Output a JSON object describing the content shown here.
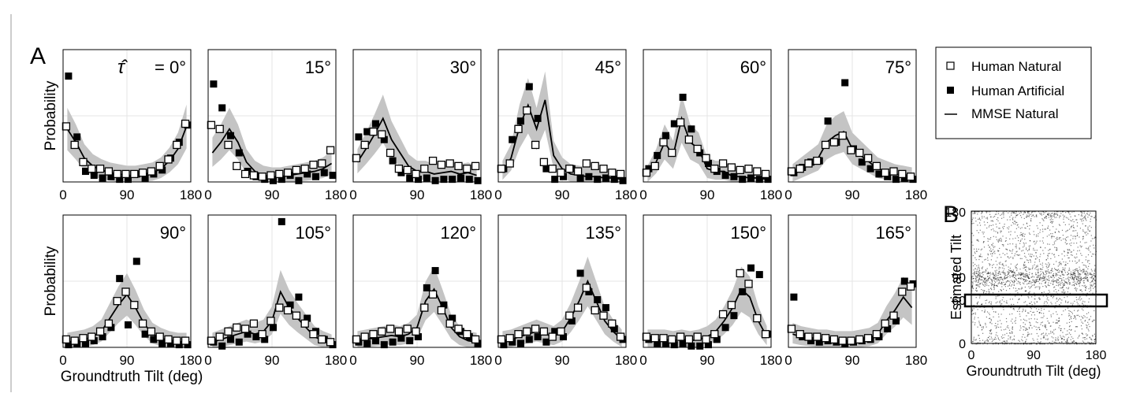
{
  "panel_labels": {
    "a": "A",
    "b": "B"
  },
  "shared": {
    "xlabel": "Groundtruth Tilt (deg)",
    "ylabel": "Probability",
    "xticks": [
      "0",
      "90",
      "180"
    ]
  },
  "legend": {
    "items": [
      {
        "label": "Human Natural",
        "marker": "open-square"
      },
      {
        "label": "Human Artificial",
        "marker": "filled-square"
      },
      {
        "label": "MMSE Natural",
        "marker": "line"
      }
    ]
  },
  "colors": {
    "band": "#c4c4c4",
    "grid": "#e4e4e4",
    "ink": "#000000"
  },
  "chart_data": [
    {
      "type": "line",
      "title": "= 0°",
      "title_symbol": "τ̂",
      "xlim": [
        0,
        180
      ],
      "x": [
        6,
        18,
        30,
        42,
        54,
        66,
        78,
        90,
        102,
        114,
        126,
        138,
        150,
        162,
        174
      ],
      "series": [
        {
          "name": "Human Natural",
          "values": [
            0.42,
            0.28,
            0.15,
            0.1,
            0.1,
            0.08,
            0.06,
            0.06,
            0.06,
            0.07,
            0.08,
            0.12,
            0.17,
            0.28,
            0.44
          ]
        },
        {
          "name": "Human Artificial",
          "values": [
            0.8,
            0.34,
            0.08,
            0.05,
            0.03,
            0.04,
            0.02,
            0.02,
            0.06,
            0.03,
            0.06,
            0.09,
            0.18,
            0.3,
            0.43
          ]
        },
        {
          "name": "MMSE Natural",
          "values": [
            0.4,
            0.3,
            0.18,
            0.12,
            0.09,
            0.07,
            0.06,
            0.05,
            0.05,
            0.06,
            0.07,
            0.1,
            0.16,
            0.25,
            0.42
          ]
        }
      ]
    },
    {
      "type": "line",
      "title": "15°",
      "xlim": [
        0,
        180
      ],
      "x": [
        6,
        18,
        30,
        42,
        54,
        66,
        78,
        90,
        102,
        114,
        126,
        138,
        150,
        162,
        174
      ],
      "series": [
        {
          "name": "Human Natural",
          "values": [
            0.43,
            0.4,
            0.28,
            0.12,
            0.06,
            0.05,
            0.04,
            0.05,
            0.06,
            0.07,
            0.09,
            0.1,
            0.13,
            0.14,
            0.24
          ]
        },
        {
          "name": "Human Artificial",
          "values": [
            0.74,
            0.56,
            0.35,
            0.22,
            0.08,
            0.04,
            0.02,
            0.01,
            0.02,
            0.05,
            0.01,
            0.06,
            0.04,
            0.07,
            0.05
          ]
        },
        {
          "name": "MMSE Natural",
          "values": [
            0.22,
            0.3,
            0.4,
            0.3,
            0.15,
            0.08,
            0.05,
            0.04,
            0.04,
            0.05,
            0.06,
            0.07,
            0.08,
            0.1,
            0.14
          ]
        }
      ]
    },
    {
      "type": "line",
      "title": "30°",
      "xlim": [
        0,
        180
      ],
      "x": [
        6,
        18,
        30,
        42,
        54,
        66,
        78,
        90,
        102,
        114,
        126,
        138,
        150,
        162,
        174
      ],
      "series": [
        {
          "name": "Human Natural",
          "values": [
            0.18,
            0.28,
            0.38,
            0.36,
            0.22,
            0.1,
            0.09,
            0.06,
            0.1,
            0.16,
            0.13,
            0.14,
            0.12,
            0.1,
            0.12
          ]
        },
        {
          "name": "Human Artificial",
          "values": [
            0.34,
            0.38,
            0.44,
            0.32,
            0.16,
            0.07,
            0.03,
            0.02,
            0.03,
            0.01,
            0.02,
            0.02,
            0.03,
            0.02,
            0.01
          ]
        },
        {
          "name": "MMSE Natural",
          "values": [
            0.15,
            0.25,
            0.36,
            0.48,
            0.32,
            0.22,
            0.12,
            0.08,
            0.08,
            0.06,
            0.07,
            0.08,
            0.06,
            0.07,
            0.05
          ]
        }
      ]
    },
    {
      "type": "line",
      "title": "45°",
      "xlim": [
        0,
        180
      ],
      "x": [
        6,
        18,
        30,
        42,
        54,
        66,
        78,
        90,
        102,
        114,
        126,
        138,
        150,
        162,
        174
      ],
      "series": [
        {
          "name": "Human Natural",
          "values": [
            0.1,
            0.14,
            0.4,
            0.54,
            0.28,
            0.15,
            0.1,
            0.07,
            0.1,
            0.08,
            0.14,
            0.12,
            0.1,
            0.07,
            0.06
          ]
        },
        {
          "name": "Human Artificial",
          "values": [
            0.1,
            0.32,
            0.46,
            0.72,
            0.48,
            0.1,
            0.02,
            0.04,
            0.1,
            0.03,
            0.04,
            0.02,
            0.03,
            0.02,
            0.01
          ]
        },
        {
          "name": "MMSE Natural",
          "values": [
            0.08,
            0.18,
            0.42,
            0.58,
            0.4,
            0.62,
            0.2,
            0.1,
            0.06,
            0.05,
            0.04,
            0.04,
            0.03,
            0.03,
            0.02
          ]
        }
      ]
    },
    {
      "type": "line",
      "title": "60°",
      "xlim": [
        0,
        180
      ],
      "x": [
        6,
        18,
        30,
        42,
        54,
        66,
        78,
        90,
        102,
        114,
        126,
        138,
        150,
        162,
        174
      ],
      "series": [
        {
          "name": "Human Natural",
          "values": [
            0.07,
            0.12,
            0.3,
            0.22,
            0.45,
            0.32,
            0.25,
            0.18,
            0.1,
            0.14,
            0.11,
            0.09,
            0.1,
            0.08,
            0.06
          ]
        },
        {
          "name": "Human Artificial",
          "values": [
            0.1,
            0.2,
            0.35,
            0.44,
            0.64,
            0.4,
            0.22,
            0.14,
            0.08,
            0.05,
            0.04,
            0.02,
            0.03,
            0.02,
            0.02
          ]
        },
        {
          "name": "MMSE Natural",
          "values": [
            0.05,
            0.15,
            0.3,
            0.2,
            0.48,
            0.3,
            0.25,
            0.1,
            0.08,
            0.08,
            0.04,
            0.04,
            0.03,
            0.03,
            0.02
          ]
        }
      ]
    },
    {
      "type": "line",
      "title": "75°",
      "xlim": [
        0,
        180
      ],
      "x": [
        6,
        18,
        30,
        42,
        54,
        66,
        78,
        90,
        102,
        114,
        126,
        138,
        150,
        162,
        174
      ],
      "series": [
        {
          "name": "Human Natural",
          "values": [
            0.08,
            0.1,
            0.14,
            0.16,
            0.28,
            0.3,
            0.35,
            0.24,
            0.22,
            0.18,
            0.12,
            0.07,
            0.08,
            0.06,
            0.04
          ]
        },
        {
          "name": "Human Artificial",
          "values": [
            0.07,
            0.11,
            0.15,
            0.16,
            0.46,
            0.3,
            0.75,
            0.25,
            0.15,
            0.1,
            0.06,
            0.04,
            0.02,
            0.03,
            0.02
          ]
        },
        {
          "name": "MMSE Natural",
          "values": [
            0.06,
            0.1,
            0.14,
            0.18,
            0.3,
            0.35,
            0.38,
            0.25,
            0.2,
            0.15,
            0.1,
            0.08,
            0.06,
            0.05,
            0.04
          ]
        }
      ]
    },
    {
      "type": "line",
      "title": "90°",
      "xlim": [
        0,
        180
      ],
      "x": [
        6,
        18,
        30,
        42,
        54,
        66,
        78,
        90,
        102,
        114,
        126,
        138,
        150,
        162,
        174
      ],
      "series": [
        {
          "name": "Human Natural",
          "values": [
            0.06,
            0.05,
            0.07,
            0.08,
            0.12,
            0.18,
            0.35,
            0.42,
            0.32,
            0.18,
            0.12,
            0.08,
            0.06,
            0.05,
            0.05
          ]
        },
        {
          "name": "Human Artificial",
          "values": [
            0.02,
            0.03,
            0.03,
            0.05,
            0.08,
            0.15,
            0.52,
            0.17,
            0.65,
            0.1,
            0.06,
            0.03,
            0.03,
            0.02,
            0.02
          ]
        },
        {
          "name": "MMSE Natural",
          "values": [
            0.04,
            0.05,
            0.06,
            0.08,
            0.12,
            0.22,
            0.32,
            0.4,
            0.3,
            0.18,
            0.1,
            0.07,
            0.05,
            0.04,
            0.04
          ]
        }
      ]
    },
    {
      "type": "line",
      "title": "105°",
      "xlim": [
        0,
        180
      ],
      "x": [
        6,
        18,
        30,
        42,
        54,
        66,
        78,
        90,
        102,
        114,
        126,
        138,
        150,
        162,
        174
      ],
      "series": [
        {
          "name": "Human Natural",
          "values": [
            0.05,
            0.08,
            0.12,
            0.15,
            0.14,
            0.18,
            0.1,
            0.2,
            0.3,
            0.28,
            0.24,
            0.18,
            0.1,
            0.06,
            0.04
          ]
        },
        {
          "name": "Human Artificial",
          "values": [
            0.04,
            0.01,
            0.06,
            0.04,
            0.1,
            0.08,
            0.06,
            0.15,
            0.95,
            0.32,
            0.38,
            0.22,
            0.12,
            0.06,
            0.02
          ]
        },
        {
          "name": "MMSE Natural",
          "values": [
            0.04,
            0.06,
            0.08,
            0.1,
            0.12,
            0.1,
            0.12,
            0.2,
            0.42,
            0.3,
            0.22,
            0.15,
            0.08,
            0.05,
            0.03
          ]
        }
      ]
    },
    {
      "type": "line",
      "title": "120°",
      "xlim": [
        0,
        180
      ],
      "x": [
        6,
        18,
        30,
        42,
        54,
        66,
        78,
        90,
        102,
        114,
        126,
        138,
        150,
        162,
        174
      ],
      "series": [
        {
          "name": "Human Natural",
          "values": [
            0.06,
            0.08,
            0.1,
            0.12,
            0.14,
            0.12,
            0.14,
            0.12,
            0.3,
            0.4,
            0.28,
            0.18,
            0.14,
            0.1,
            0.06
          ]
        },
        {
          "name": "Human Artificial",
          "values": [
            0.04,
            0.03,
            0.05,
            0.02,
            0.04,
            0.07,
            0.05,
            0.08,
            0.45,
            0.58,
            0.32,
            0.22,
            0.12,
            0.08,
            0.03
          ]
        },
        {
          "name": "MMSE Natural",
          "values": [
            0.05,
            0.06,
            0.07,
            0.08,
            0.09,
            0.08,
            0.1,
            0.15,
            0.35,
            0.44,
            0.3,
            0.15,
            0.08,
            0.05,
            0.04
          ]
        }
      ]
    },
    {
      "type": "line",
      "title": "135°",
      "xlim": [
        0,
        180
      ],
      "x": [
        6,
        18,
        30,
        42,
        54,
        66,
        78,
        90,
        102,
        114,
        126,
        138,
        150,
        162,
        174
      ],
      "series": [
        {
          "name": "Human Natural",
          "values": [
            0.06,
            0.07,
            0.1,
            0.12,
            0.14,
            0.12,
            0.08,
            0.12,
            0.24,
            0.3,
            0.45,
            0.28,
            0.24,
            0.18,
            0.08
          ]
        },
        {
          "name": "Human Artificial",
          "values": [
            0.02,
            0.04,
            0.03,
            0.06,
            0.08,
            0.04,
            0.12,
            0.08,
            0.2,
            0.56,
            0.42,
            0.36,
            0.3,
            0.14,
            0.06
          ]
        },
        {
          "name": "MMSE Natural",
          "values": [
            0.05,
            0.06,
            0.08,
            0.1,
            0.12,
            0.1,
            0.08,
            0.12,
            0.22,
            0.35,
            0.5,
            0.35,
            0.2,
            0.12,
            0.06
          ]
        }
      ]
    },
    {
      "type": "line",
      "title": "150°",
      "xlim": [
        0,
        180
      ],
      "x": [
        6,
        18,
        30,
        42,
        54,
        66,
        78,
        90,
        102,
        114,
        126,
        138,
        150,
        162,
        174
      ],
      "series": [
        {
          "name": "Human Natural",
          "values": [
            0.08,
            0.07,
            0.07,
            0.06,
            0.08,
            0.06,
            0.08,
            0.06,
            0.1,
            0.25,
            0.32,
            0.56,
            0.48,
            0.22,
            0.1
          ]
        },
        {
          "name": "Human Artificial",
          "values": [
            0.06,
            0.03,
            0.03,
            0.02,
            0.03,
            0.01,
            0.01,
            0.02,
            0.06,
            0.15,
            0.24,
            0.42,
            0.6,
            0.55,
            0.1
          ]
        },
        {
          "name": "MMSE Natural",
          "values": [
            0.06,
            0.06,
            0.06,
            0.05,
            0.06,
            0.05,
            0.06,
            0.08,
            0.12,
            0.2,
            0.3,
            0.44,
            0.38,
            0.2,
            0.08
          ]
        }
      ]
    },
    {
      "type": "line",
      "title": "165°",
      "xlim": [
        0,
        180
      ],
      "x": [
        6,
        18,
        30,
        42,
        54,
        66,
        78,
        90,
        102,
        114,
        126,
        138,
        150,
        162,
        174
      ],
      "series": [
        {
          "name": "Human Natural",
          "values": [
            0.14,
            0.1,
            0.08,
            0.08,
            0.07,
            0.06,
            0.05,
            0.05,
            0.06,
            0.07,
            0.1,
            0.18,
            0.24,
            0.42,
            0.46
          ]
        },
        {
          "name": "Human Artificial",
          "values": [
            0.38,
            0.08,
            0.05,
            0.04,
            0.05,
            0.04,
            0.03,
            0.04,
            0.05,
            0.06,
            0.08,
            0.14,
            0.2,
            0.5,
            0.48
          ]
        },
        {
          "name": "MMSE Natural",
          "values": [
            0.1,
            0.08,
            0.07,
            0.06,
            0.06,
            0.05,
            0.05,
            0.05,
            0.06,
            0.07,
            0.1,
            0.2,
            0.28,
            0.38,
            0.3
          ]
        }
      ]
    },
    {
      "type": "scatter",
      "panel": "B",
      "xlabel": "Groundtruth Tilt (deg)",
      "ylabel": "Estimated Tilt",
      "xlim": [
        0,
        180
      ],
      "ylim": [
        0,
        180
      ],
      "xticks": [
        "0",
        "90",
        "180"
      ],
      "yticks": [
        "0",
        "60",
        "90",
        "180"
      ],
      "highlight_band": [
        55,
        67
      ]
    }
  ]
}
